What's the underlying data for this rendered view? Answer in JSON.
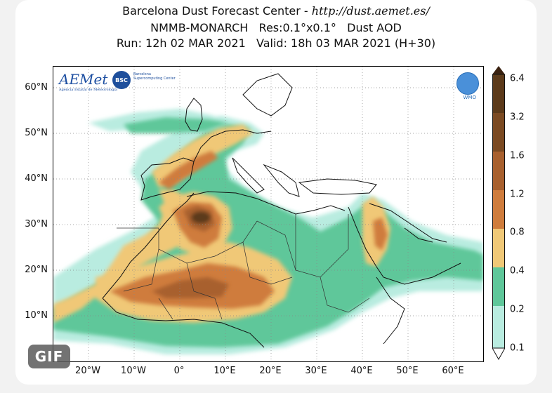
{
  "header": {
    "line1_prefix": "Barcelona Dust Forecast Center - ",
    "line1_url": "http://dust.aemet.es/",
    "line2": "NMMB-MONARCH   Res:0.1°x0.1°   Dust AOD",
    "line3": "Run: 12h 02 MAR 2021   Valid: 18h 03 MAR 2021 (H+30)"
  },
  "map": {
    "lat_labels": [
      "60°N",
      "50°N",
      "40°N",
      "30°N",
      "20°N",
      "10°N"
    ],
    "lon_labels": [
      "20°W",
      "10°W",
      "0°",
      "10°E",
      "20°E",
      "30°E",
      "40°E",
      "50°E",
      "60°E"
    ],
    "logos": {
      "aemet": "AEMet",
      "aemet_sub": "Agencia Estatal de Meteorología",
      "bsc": "BSC",
      "bsc_text": "Barcelona Supercomputing Center",
      "wmo": "WMO"
    }
  },
  "colorbar": {
    "labels": [
      "6.4",
      "3.2",
      "1.6",
      "1.2",
      "0.8",
      "0.4",
      "0.2",
      "0.1"
    ],
    "colors": [
      "#3b2211",
      "#5c3a1a",
      "#7b4a22",
      "#a8602e",
      "#cf7c3c",
      "#f0c877",
      "#5fc79a",
      "#b9ece0"
    ]
  },
  "badge": {
    "label": "GIF"
  }
}
